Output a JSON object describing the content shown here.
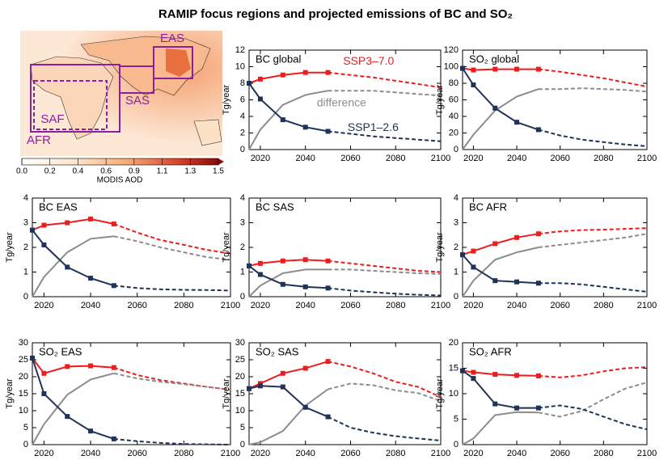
{
  "title": "RAMIP focus regions and projected emissions of BC and SO₂",
  "map": {
    "regions": [
      "EAS",
      "SAS",
      "SAF",
      "AFR"
    ],
    "colorbar": {
      "label": "MODIS AOD",
      "ticks": [
        {
          "value": 0,
          "label": "0.0"
        },
        0.2,
        0.4,
        0.6,
        0.9,
        1.1,
        1.3,
        1.5
      ]
    }
  },
  "chart_data": [
    {
      "type": "line",
      "title": "BC global",
      "ylabel": "Tg/year",
      "x": [
        2015,
        2020,
        2030,
        2040,
        2050,
        2060,
        2070,
        2080,
        2090,
        2100
      ],
      "solid_until": 2050,
      "xlim": [
        2015,
        2100
      ],
      "xticks": [
        2020,
        2040,
        2060,
        2080,
        2100
      ],
      "ylim": [
        0,
        12
      ],
      "yticks": [
        0,
        2,
        4,
        6,
        8,
        10,
        12
      ],
      "series": [
        {
          "name": "SSP3–7.0",
          "color": "#ee1c1c",
          "markers": true,
          "values": [
            8.0,
            8.5,
            9.0,
            9.3,
            9.3,
            9.0,
            8.7,
            8.3,
            7.9,
            7.5
          ]
        },
        {
          "name": "difference",
          "color": "#8c8c8c",
          "markers": false,
          "values": [
            0,
            2.4,
            5.4,
            6.6,
            7.1,
            7.1,
            7.1,
            6.9,
            6.7,
            6.5
          ]
        },
        {
          "name": "SSP1–2.6",
          "color": "#1f3258",
          "markers": true,
          "values": [
            8.0,
            6.1,
            3.6,
            2.7,
            2.2,
            1.9,
            1.6,
            1.4,
            1.2,
            1.0
          ]
        }
      ]
    },
    {
      "type": "line",
      "title": "SO₂ global",
      "ylabel": "Tg/year",
      "x": [
        2015,
        2020,
        2030,
        2040,
        2050,
        2060,
        2070,
        2080,
        2090,
        2100
      ],
      "solid_until": 2050,
      "xlim": [
        2015,
        2100
      ],
      "xticks": [
        2020,
        2040,
        2060,
        2080,
        2100
      ],
      "ylim": [
        0,
        120
      ],
      "yticks": [
        0,
        20,
        40,
        60,
        80,
        100,
        120
      ],
      "series": [
        {
          "color": "#ee1c1c",
          "markers": true,
          "values": [
            98,
            96,
            97,
            97,
            97,
            94,
            90,
            86,
            81,
            76
          ]
        },
        {
          "color": "#8c8c8c",
          "markers": false,
          "values": [
            0,
            18,
            47,
            64,
            73,
            73,
            74,
            73,
            72,
            70
          ]
        },
        {
          "color": "#1f3258",
          "markers": true,
          "values": [
            98,
            78,
            50,
            33,
            24,
            17,
            12,
            9,
            6,
            4
          ]
        }
      ]
    },
    {
      "type": "line",
      "title": "BC EAS",
      "ylabel": "Tg/year",
      "x": [
        2015,
        2020,
        2030,
        2040,
        2050,
        2060,
        2070,
        2080,
        2090,
        2100
      ],
      "solid_until": 2050,
      "xlim": [
        2015,
        2100
      ],
      "xticks": [
        2020,
        2040,
        2060,
        2080,
        2100
      ],
      "ylim": [
        0,
        4
      ],
      "yticks": [
        0,
        1,
        2,
        3,
        4
      ],
      "series": [
        {
          "color": "#ee1c1c",
          "markers": true,
          "values": [
            2.7,
            2.9,
            3.0,
            3.15,
            2.95,
            2.6,
            2.3,
            2.1,
            1.9,
            1.75
          ]
        },
        {
          "color": "#8c8c8c",
          "markers": false,
          "values": [
            0,
            0.8,
            1.8,
            2.35,
            2.45,
            2.25,
            2.0,
            1.8,
            1.6,
            1.5
          ]
        },
        {
          "color": "#1f3258",
          "markers": true,
          "values": [
            2.7,
            2.1,
            1.2,
            0.75,
            0.45,
            0.35,
            0.3,
            0.28,
            0.27,
            0.25
          ]
        }
      ]
    },
    {
      "type": "line",
      "title": "BC SAS",
      "ylabel": "Tg/year",
      "x": [
        2015,
        2020,
        2030,
        2040,
        2050,
        2060,
        2070,
        2080,
        2090,
        2100
      ],
      "solid_until": 2050,
      "xlim": [
        2015,
        2100
      ],
      "xticks": [
        2020,
        2040,
        2060,
        2080,
        2100
      ],
      "ylim": [
        0,
        4
      ],
      "yticks": [
        0,
        1,
        2,
        3,
        4
      ],
      "series": [
        {
          "color": "#ee1c1c",
          "markers": true,
          "values": [
            1.25,
            1.35,
            1.45,
            1.5,
            1.45,
            1.35,
            1.25,
            1.15,
            1.05,
            1.0
          ]
        },
        {
          "color": "#8c8c8c",
          "markers": false,
          "values": [
            0,
            0.45,
            0.95,
            1.1,
            1.1,
            1.1,
            1.05,
            1.0,
            0.95,
            0.92
          ]
        },
        {
          "color": "#1f3258",
          "markers": true,
          "values": [
            1.25,
            0.9,
            0.5,
            0.4,
            0.35,
            0.25,
            0.18,
            0.12,
            0.08,
            0.05
          ]
        }
      ]
    },
    {
      "type": "line",
      "title": "BC AFR",
      "ylabel": "Tg/year",
      "x": [
        2015,
        2020,
        2030,
        2040,
        2050,
        2060,
        2070,
        2080,
        2090,
        2100
      ],
      "solid_until": 2050,
      "xlim": [
        2015,
        2100
      ],
      "xticks": [
        2020,
        2040,
        2060,
        2080,
        2100
      ],
      "ylim": [
        0,
        4
      ],
      "yticks": [
        0,
        1,
        2,
        3,
        4
      ],
      "series": [
        {
          "color": "#ee1c1c",
          "markers": true,
          "values": [
            1.7,
            1.85,
            2.15,
            2.4,
            2.55,
            2.65,
            2.7,
            2.72,
            2.75,
            2.78
          ]
        },
        {
          "color": "#8c8c8c",
          "markers": false,
          "values": [
            0,
            0.65,
            1.5,
            1.8,
            2.0,
            2.1,
            2.2,
            2.3,
            2.4,
            2.55
          ]
        },
        {
          "color": "#1f3258",
          "markers": true,
          "values": [
            1.7,
            1.2,
            0.65,
            0.6,
            0.55,
            0.55,
            0.5,
            0.4,
            0.3,
            0.2
          ]
        }
      ]
    },
    {
      "type": "line",
      "title": "SO₂ EAS",
      "ylabel": "Tg/year",
      "x": [
        2015,
        2020,
        2030,
        2040,
        2050,
        2060,
        2070,
        2080,
        2090,
        2100
      ],
      "solid_until": 2050,
      "xlim": [
        2015,
        2100
      ],
      "xticks": [
        2020,
        2040,
        2060,
        2080,
        2100
      ],
      "ylim": [
        0,
        30
      ],
      "yticks": [
        0,
        5,
        10,
        15,
        20,
        25,
        30
      ],
      "series": [
        {
          "color": "#ee1c1c",
          "markers": true,
          "values": [
            25.5,
            21,
            23,
            23.2,
            22.7,
            20.5,
            19,
            18,
            17,
            16.2
          ]
        },
        {
          "color": "#8c8c8c",
          "markers": false,
          "values": [
            0,
            6,
            14.7,
            19.2,
            21,
            19.5,
            18.5,
            17.8,
            17,
            16.2
          ]
        },
        {
          "color": "#1f3258",
          "markers": true,
          "values": [
            25.5,
            15,
            8.3,
            4,
            1.7,
            1.0,
            0.5,
            0.2,
            0.1,
            0
          ]
        }
      ]
    },
    {
      "type": "line",
      "title": "SO₂ SAS",
      "ylabel": "Tg/year",
      "x": [
        2015,
        2020,
        2030,
        2040,
        2050,
        2060,
        2070,
        2080,
        2090,
        2100
      ],
      "solid_until": 2050,
      "xlim": [
        2015,
        2100
      ],
      "xticks": [
        2020,
        2040,
        2060,
        2080,
        2100
      ],
      "ylim": [
        0,
        30
      ],
      "yticks": [
        0,
        5,
        10,
        15,
        20,
        25,
        30
      ],
      "series": [
        {
          "color": "#ee1c1c",
          "markers": true,
          "values": [
            16.5,
            18,
            21,
            22.5,
            24.5,
            23,
            21,
            18.5,
            17,
            14
          ]
        },
        {
          "color": "#8c8c8c",
          "markers": false,
          "values": [
            0,
            0.7,
            4,
            11.5,
            16.3,
            18,
            17.5,
            16,
            15.2,
            12.8
          ]
        },
        {
          "color": "#1f3258",
          "markers": true,
          "values": [
            16.5,
            17.3,
            17,
            11,
            8.2,
            5,
            3.5,
            2.5,
            1.8,
            1.2
          ]
        }
      ]
    },
    {
      "type": "line",
      "title": "SO₂ AFR",
      "ylabel": "Tg/year",
      "x": [
        2015,
        2020,
        2030,
        2040,
        2050,
        2060,
        2070,
        2080,
        2090,
        2100
      ],
      "solid_until": 2050,
      "xlim": [
        2015,
        2100
      ],
      "xticks": [
        2020,
        2040,
        2060,
        2080,
        2100
      ],
      "ylim": [
        0,
        20
      ],
      "yticks": [
        0,
        5,
        10,
        15,
        20
      ],
      "series": [
        {
          "color": "#ee1c1c",
          "markers": true,
          "values": [
            14.5,
            14.2,
            13.8,
            13.6,
            13.5,
            13.2,
            13.6,
            14.4,
            15,
            15.2
          ]
        },
        {
          "color": "#8c8c8c",
          "markers": false,
          "values": [
            0,
            1.2,
            5.8,
            6.4,
            6.3,
            5.5,
            6.6,
            8.9,
            11,
            12.2
          ]
        },
        {
          "color": "#1f3258",
          "markers": true,
          "values": [
            14.5,
            13,
            8,
            7.2,
            7.2,
            7.7,
            7.0,
            5.5,
            4,
            3.0
          ]
        }
      ]
    }
  ]
}
